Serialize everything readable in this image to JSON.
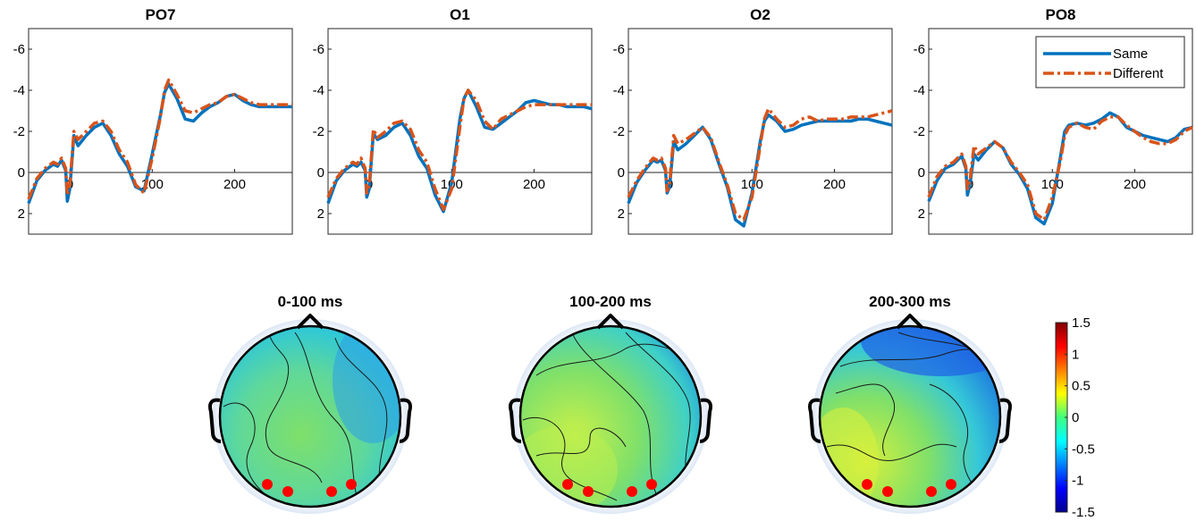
{
  "chart_data": [
    {
      "type": "line",
      "title": "PO7",
      "xlabel": "",
      "ylabel": "",
      "xlim": [
        -50,
        270
      ],
      "ylim": [
        -7,
        3
      ],
      "y_reversed": true,
      "xticks": [
        0,
        100,
        200
      ],
      "yticks": [
        -6,
        -4,
        -2,
        0,
        2
      ],
      "series": [
        {
          "name": "Same",
          "color": "#0072BD",
          "style": "solid",
          "x": [
            -50,
            -40,
            -30,
            -20,
            -15,
            -10,
            -5,
            -3,
            0,
            5,
            10,
            20,
            30,
            40,
            50,
            60,
            70,
            80,
            90,
            100,
            110,
            115,
            120,
            130,
            140,
            150,
            160,
            170,
            180,
            190,
            200,
            210,
            220,
            230,
            240,
            250,
            260,
            270
          ],
          "y": [
            1.5,
            0.4,
            -0.1,
            -0.4,
            -0.3,
            -0.6,
            -0.1,
            1.4,
            0.8,
            -1.8,
            -1.3,
            -1.8,
            -2.2,
            -2.4,
            -1.8,
            -0.9,
            -0.3,
            0.7,
            0.9,
            -0.9,
            -2.8,
            -3.9,
            -4.3,
            -3.6,
            -2.6,
            -2.5,
            -2.9,
            -3.2,
            -3.4,
            -3.7,
            -3.8,
            -3.5,
            -3.3,
            -3.2,
            -3.2,
            -3.2,
            -3.2,
            -3.2
          ]
        },
        {
          "name": "Different",
          "color": "#D95319",
          "style": "dashdot",
          "x": [
            -50,
            -40,
            -30,
            -20,
            -15,
            -10,
            -5,
            -3,
            0,
            5,
            10,
            20,
            30,
            40,
            50,
            60,
            70,
            80,
            90,
            100,
            110,
            115,
            120,
            130,
            140,
            150,
            160,
            170,
            180,
            190,
            200,
            210,
            220,
            230,
            240,
            250,
            260,
            270
          ],
          "y": [
            1.3,
            0.3,
            -0.2,
            -0.5,
            -0.4,
            -0.7,
            -0.2,
            1.1,
            0.6,
            -2.0,
            -1.6,
            -2.0,
            -2.4,
            -2.5,
            -2.0,
            -1.1,
            -0.5,
            0.6,
            1.0,
            -0.7,
            -2.7,
            -4.0,
            -4.5,
            -3.8,
            -3.0,
            -2.9,
            -3.1,
            -3.3,
            -3.4,
            -3.7,
            -3.8,
            -3.6,
            -3.4,
            -3.3,
            -3.3,
            -3.3,
            -3.3,
            -3.3
          ]
        }
      ]
    },
    {
      "type": "line",
      "title": "O1",
      "xlabel": "",
      "ylabel": "",
      "xlim": [
        -50,
        270
      ],
      "ylim": [
        -7,
        3
      ],
      "y_reversed": true,
      "xticks": [
        0,
        100,
        200
      ],
      "yticks": [
        -6,
        -4,
        -2,
        0,
        2
      ],
      "series": [
        {
          "name": "Same",
          "color": "#0072BD",
          "style": "solid",
          "x": [
            -50,
            -40,
            -30,
            -20,
            -15,
            -10,
            -5,
            -3,
            0,
            5,
            10,
            20,
            30,
            40,
            50,
            60,
            70,
            80,
            90,
            100,
            110,
            115,
            120,
            130,
            140,
            150,
            160,
            170,
            180,
            190,
            200,
            210,
            220,
            230,
            240,
            250,
            260,
            270
          ],
          "y": [
            1.5,
            0.4,
            -0.1,
            -0.4,
            -0.3,
            -0.5,
            -0.1,
            1.2,
            0.8,
            -1.9,
            -1.6,
            -1.8,
            -2.2,
            -2.4,
            -1.8,
            -0.8,
            -0.2,
            1.1,
            1.9,
            0.5,
            -2.6,
            -3.6,
            -4.0,
            -3.2,
            -2.2,
            -2.1,
            -2.4,
            -2.7,
            -3.0,
            -3.4,
            -3.5,
            -3.4,
            -3.3,
            -3.3,
            -3.2,
            -3.2,
            -3.2,
            -3.1
          ]
        },
        {
          "name": "Different",
          "color": "#D95319",
          "style": "dashdot",
          "x": [
            -50,
            -40,
            -30,
            -20,
            -15,
            -10,
            -5,
            -3,
            0,
            5,
            10,
            20,
            30,
            40,
            50,
            60,
            70,
            80,
            90,
            100,
            110,
            115,
            120,
            130,
            140,
            150,
            160,
            170,
            180,
            190,
            200,
            210,
            220,
            230,
            240,
            250,
            260,
            270
          ],
          "y": [
            1.2,
            0.3,
            -0.2,
            -0.5,
            -0.4,
            -0.7,
            -0.2,
            1.0,
            0.6,
            -2.1,
            -1.7,
            -2.0,
            -2.4,
            -2.5,
            -2.1,
            -1.1,
            -0.5,
            0.8,
            1.8,
            0.8,
            -2.2,
            -3.6,
            -4.0,
            -3.5,
            -2.5,
            -2.1,
            -2.6,
            -2.8,
            -3.0,
            -3.2,
            -3.3,
            -3.3,
            -3.3,
            -3.3,
            -3.3,
            -3.3,
            -3.3,
            -3.3
          ]
        }
      ]
    },
    {
      "type": "line",
      "title": "O2",
      "xlabel": "",
      "ylabel": "",
      "xlim": [
        -50,
        270
      ],
      "ylim": [
        -7,
        3
      ],
      "y_reversed": true,
      "xticks": [
        0,
        100,
        200
      ],
      "yticks": [
        -6,
        -4,
        -2,
        0,
        2
      ],
      "series": [
        {
          "name": "Same",
          "color": "#0072BD",
          "style": "solid",
          "x": [
            -50,
            -40,
            -30,
            -20,
            -15,
            -10,
            -5,
            -3,
            0,
            5,
            10,
            20,
            30,
            40,
            50,
            60,
            70,
            80,
            90,
            100,
            110,
            115,
            120,
            130,
            140,
            150,
            160,
            170,
            180,
            190,
            200,
            210,
            220,
            230,
            240,
            250,
            260,
            270
          ],
          "y": [
            1.5,
            0.5,
            -0.1,
            -0.6,
            -0.5,
            -0.6,
            -0.1,
            1.0,
            0.7,
            -1.5,
            -1.1,
            -1.4,
            -1.8,
            -2.2,
            -1.6,
            -0.4,
            0.7,
            2.3,
            2.6,
            1.0,
            -1.5,
            -2.5,
            -2.8,
            -2.5,
            -2.0,
            -2.1,
            -2.3,
            -2.4,
            -2.5,
            -2.5,
            -2.5,
            -2.5,
            -2.5,
            -2.6,
            -2.6,
            -2.5,
            -2.4,
            -2.3
          ]
        },
        {
          "name": "Different",
          "color": "#D95319",
          "style": "dashdot",
          "x": [
            -50,
            -40,
            -30,
            -20,
            -15,
            -10,
            -5,
            -3,
            0,
            5,
            10,
            20,
            30,
            40,
            50,
            60,
            70,
            80,
            90,
            100,
            110,
            115,
            120,
            130,
            140,
            150,
            160,
            170,
            180,
            190,
            200,
            210,
            220,
            230,
            240,
            250,
            260,
            270
          ],
          "y": [
            1.2,
            0.4,
            -0.2,
            -0.7,
            -0.6,
            -0.7,
            -0.2,
            0.9,
            0.6,
            -1.8,
            -1.4,
            -1.6,
            -1.9,
            -2.2,
            -1.7,
            -0.5,
            0.6,
            2.0,
            2.3,
            1.2,
            -1.3,
            -2.6,
            -3.1,
            -2.6,
            -2.2,
            -2.3,
            -2.6,
            -2.7,
            -2.5,
            -2.6,
            -2.6,
            -2.6,
            -2.7,
            -2.7,
            -2.7,
            -2.8,
            -2.9,
            -3.0
          ]
        }
      ]
    },
    {
      "type": "line",
      "title": "PO8",
      "xlabel": "",
      "ylabel": "",
      "xlim": [
        -50,
        270
      ],
      "ylim": [
        -7,
        3
      ],
      "y_reversed": true,
      "xticks": [
        0,
        100,
        200
      ],
      "yticks": [
        -6,
        -4,
        -2,
        0,
        2
      ],
      "legend": {
        "position": "top-right",
        "entries": [
          "Same",
          "Different"
        ]
      },
      "series": [
        {
          "name": "Same",
          "color": "#0072BD",
          "style": "solid",
          "x": [
            -50,
            -40,
            -30,
            -20,
            -15,
            -10,
            -5,
            -3,
            0,
            5,
            10,
            20,
            30,
            40,
            50,
            60,
            70,
            80,
            90,
            100,
            110,
            115,
            120,
            130,
            140,
            150,
            160,
            170,
            180,
            190,
            200,
            210,
            220,
            230,
            240,
            250,
            260,
            270
          ],
          "y": [
            1.4,
            0.4,
            -0.2,
            -0.4,
            -0.6,
            -0.8,
            -0.2,
            1.1,
            0.6,
            -0.9,
            -0.6,
            -1.1,
            -1.5,
            -1.2,
            -0.4,
            0.1,
            0.8,
            2.2,
            2.5,
            1.5,
            -0.8,
            -2.0,
            -2.3,
            -2.4,
            -2.3,
            -2.4,
            -2.6,
            -2.9,
            -2.7,
            -2.2,
            -2.0,
            -1.8,
            -1.7,
            -1.6,
            -1.5,
            -1.7,
            -2.1,
            -2.2
          ]
        },
        {
          "name": "Different",
          "color": "#D95319",
          "style": "dashdot",
          "x": [
            -50,
            -40,
            -30,
            -20,
            -15,
            -10,
            -5,
            -3,
            0,
            5,
            10,
            20,
            30,
            40,
            50,
            60,
            70,
            80,
            90,
            100,
            110,
            115,
            120,
            130,
            140,
            150,
            160,
            170,
            180,
            190,
            200,
            210,
            220,
            230,
            240,
            250,
            260,
            270
          ],
          "y": [
            1.2,
            0.2,
            -0.3,
            -0.5,
            -0.7,
            -0.9,
            -0.3,
            0.8,
            0.4,
            -1.3,
            -0.9,
            -1.2,
            -1.5,
            -1.2,
            -0.5,
            0.0,
            0.6,
            2.0,
            2.3,
            1.2,
            -0.6,
            -1.8,
            -2.2,
            -2.4,
            -2.2,
            -2.1,
            -2.5,
            -2.7,
            -2.7,
            -2.3,
            -2.0,
            -1.7,
            -1.5,
            -1.4,
            -1.4,
            -1.6,
            -2.0,
            -2.2
          ]
        }
      ]
    },
    {
      "type": "heatmap",
      "subtype": "topographic-scalp-maps",
      "panels": [
        {
          "title": "0-100 ms"
        },
        {
          "title": "100-200 ms"
        },
        {
          "title": "200-300 ms"
        }
      ],
      "colorbar": {
        "range": [
          -1.5,
          1.5
        ],
        "ticks": [
          "1.5",
          "1",
          "0.5",
          "0",
          "-0.5",
          "-1",
          "-1.5"
        ],
        "colormap": "jet"
      },
      "highlighted_electrodes": [
        "PO7",
        "O1",
        "O2",
        "PO8"
      ],
      "electrode_marker_color": "#FF0000"
    }
  ]
}
